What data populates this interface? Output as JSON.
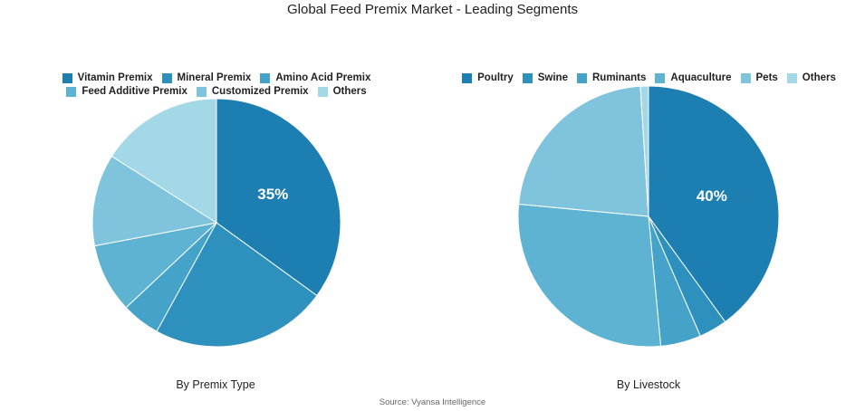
{
  "title": "Global Feed Premix Market - Leading Segments",
  "source": "Source: Vyansa Intelligence",
  "chart_data": [
    {
      "type": "pie",
      "caption": "By Premix Type",
      "slices": [
        {
          "label": "Vitamin Premix",
          "value": 35,
          "color": "#1d7fb1",
          "show_label": true,
          "display": "35%"
        },
        {
          "label": "Mineral Premix",
          "value": 23,
          "color": "#2e91bd",
          "show_label": false
        },
        {
          "label": "Amino Acid Premix",
          "value": 5,
          "color": "#45a3c9",
          "show_label": false
        },
        {
          "label": "Feed Additive Premix",
          "value": 9,
          "color": "#5fb3d2",
          "show_label": false
        },
        {
          "label": "Customized Premix",
          "value": 12,
          "color": "#7fc4dc",
          "show_label": false
        },
        {
          "label": "Others",
          "value": 16,
          "color": "#a3d8e7",
          "show_label": false
        }
      ]
    },
    {
      "type": "pie",
      "caption": "By Livestock",
      "slices": [
        {
          "label": "Poultry",
          "value": 40,
          "color": "#1d7fb1",
          "show_label": true,
          "display": "40%"
        },
        {
          "label": "Swine",
          "value": 3.5,
          "color": "#2e91bd",
          "show_label": false
        },
        {
          "label": "Ruminants",
          "value": 5,
          "color": "#45a3c9",
          "show_label": false
        },
        {
          "label": "Aquaculture",
          "value": 28,
          "color": "#5fb3d2",
          "show_label": false
        },
        {
          "label": "Pets",
          "value": 22.5,
          "color": "#7fc4dc",
          "show_label": false
        },
        {
          "label": "Others",
          "value": 1,
          "color": "#a3d8e7",
          "show_label": false
        }
      ]
    }
  ]
}
